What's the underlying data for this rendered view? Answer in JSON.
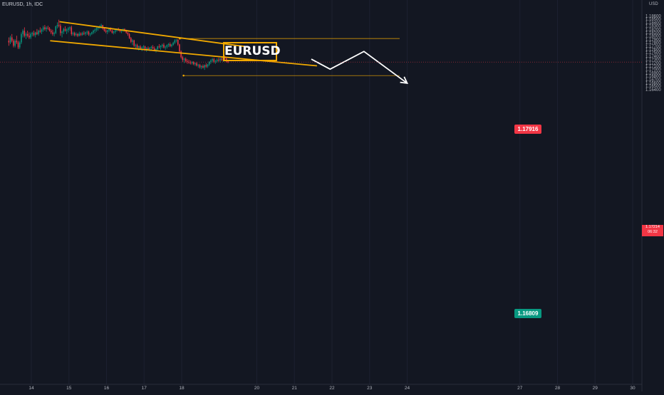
{
  "header": {
    "symbol": "EURUSD, 1h, IDC",
    "currency": "USD"
  },
  "title_label": "EURUSD",
  "colors": {
    "background": "#131722",
    "bull": "#089981",
    "bear": "#f23645",
    "channel": "#f0a800",
    "projection": "#ffffff",
    "text": "#b2b5be"
  },
  "levels": {
    "resistance": "1.17916",
    "target": "1.16809"
  },
  "current_price": {
    "value": "1.17214",
    "countdown": "06:32"
  },
  "chart_data": {
    "type": "candlestick",
    "title": "",
    "ylim": [
      1.163,
      1.1875
    ],
    "y_ticks": [
      "1.18600",
      "1.18500",
      "1.18400",
      "1.18300",
      "1.18200",
      "1.18100",
      "1.18000",
      "1.17900",
      "1.17800",
      "1.17700",
      "1.17600",
      "1.17500",
      "1.17400",
      "1.17300",
      "1.17200",
      "1.17100",
      "1.17000",
      "1.16900",
      "1.16800",
      "1.16700",
      "1.16600",
      "1.16500",
      "1.16400"
    ],
    "x_ticks": [
      "14",
      "15",
      "16",
      "17",
      "18",
      "20",
      "21",
      "22",
      "23",
      "24",
      "27",
      "28",
      "29",
      "30"
    ],
    "x_tick_days": [
      14,
      15,
      16,
      17,
      18,
      20,
      21,
      22,
      23,
      24,
      27,
      28,
      29,
      30
    ],
    "day_bounds": [
      13.4,
      30.0
    ],
    "candle_start_day": 13.4,
    "candles_per_day": 24,
    "candles": [
      [
        1.1785,
        1.1795,
        1.177,
        1.178
      ],
      [
        1.178,
        1.18,
        1.1775,
        1.1795
      ],
      [
        1.1795,
        1.1805,
        1.178,
        1.1785
      ],
      [
        1.1785,
        1.179,
        1.1765,
        1.177
      ],
      [
        1.177,
        1.179,
        1.1765,
        1.1785
      ],
      [
        1.1785,
        1.18,
        1.1775,
        1.178
      ],
      [
        1.178,
        1.1785,
        1.176,
        1.1765
      ],
      [
        1.1765,
        1.1785,
        1.176,
        1.178
      ],
      [
        1.178,
        1.181,
        1.1775,
        1.1805
      ],
      [
        1.1805,
        1.182,
        1.1795,
        1.1815
      ],
      [
        1.1815,
        1.1825,
        1.1795,
        1.18
      ],
      [
        1.18,
        1.181,
        1.179,
        1.1805
      ],
      [
        1.1805,
        1.1815,
        1.1795,
        1.18
      ],
      [
        1.18,
        1.181,
        1.179,
        1.1795
      ],
      [
        1.1795,
        1.181,
        1.179,
        1.1805
      ],
      [
        1.1805,
        1.1812,
        1.1798,
        1.1808
      ],
      [
        1.1808,
        1.1815,
        1.1798,
        1.1802
      ],
      [
        1.1802,
        1.1812,
        1.1795,
        1.181
      ],
      [
        1.181,
        1.182,
        1.1802,
        1.1805
      ],
      [
        1.1805,
        1.1818,
        1.18,
        1.1815
      ],
      [
        1.1815,
        1.1825,
        1.1808,
        1.1812
      ],
      [
        1.1812,
        1.1822,
        1.1805,
        1.1818
      ],
      [
        1.1818,
        1.183,
        1.1812,
        1.1825
      ],
      [
        1.1825,
        1.1832,
        1.1815,
        1.182
      ],
      [
        1.182,
        1.1828,
        1.1812,
        1.1824
      ],
      [
        1.1824,
        1.183,
        1.1818,
        1.1822
      ],
      [
        1.1822,
        1.1826,
        1.1812,
        1.1815
      ],
      [
        1.1815,
        1.182,
        1.1805,
        1.181
      ],
      [
        1.181,
        1.1818,
        1.18,
        1.1805
      ],
      [
        1.1805,
        1.1812,
        1.1798,
        1.1808
      ],
      [
        1.1808,
        1.183,
        1.1805,
        1.1828
      ],
      [
        1.1828,
        1.184,
        1.1822,
        1.1832
      ],
      [
        1.1832,
        1.1848,
        1.1825,
        1.183
      ],
      [
        1.183,
        1.1836,
        1.18,
        1.1808
      ],
      [
        1.1808,
        1.1815,
        1.1795,
        1.1812
      ],
      [
        1.1812,
        1.1824,
        1.1805,
        1.182
      ],
      [
        1.182,
        1.1828,
        1.1812,
        1.1815
      ],
      [
        1.1815,
        1.1822,
        1.1805,
        1.1818
      ],
      [
        1.1818,
        1.1826,
        1.181,
        1.1822
      ],
      [
        1.1822,
        1.1828,
        1.1815,
        1.1825
      ],
      [
        1.1825,
        1.183,
        1.18,
        1.1805
      ],
      [
        1.1805,
        1.1812,
        1.18,
        1.1808
      ],
      [
        1.1808,
        1.1812,
        1.1798,
        1.1802
      ],
      [
        1.1802,
        1.181,
        1.1798,
        1.1805
      ],
      [
        1.1805,
        1.1808,
        1.1796,
        1.18
      ],
      [
        1.18,
        1.1812,
        1.1798,
        1.1806
      ],
      [
        1.1806,
        1.181,
        1.1799,
        1.1803
      ],
      [
        1.1803,
        1.1812,
        1.18,
        1.1808
      ],
      [
        1.1808,
        1.1814,
        1.1802,
        1.1806
      ],
      [
        1.1806,
        1.1812,
        1.18,
        1.181
      ],
      [
        1.181,
        1.1816,
        1.1803,
        1.1812
      ],
      [
        1.1812,
        1.1815,
        1.18,
        1.1804
      ],
      [
        1.1804,
        1.1808,
        1.1798,
        1.1806
      ],
      [
        1.1806,
        1.1812,
        1.1802,
        1.181
      ],
      [
        1.181,
        1.1818,
        1.1805,
        1.1815
      ],
      [
        1.1815,
        1.1822,
        1.1808,
        1.1818
      ],
      [
        1.1818,
        1.1825,
        1.1812,
        1.1822
      ],
      [
        1.1822,
        1.1828,
        1.1815,
        1.1825
      ],
      [
        1.1825,
        1.1832,
        1.182,
        1.1828
      ],
      [
        1.1828,
        1.1836,
        1.1822,
        1.1832
      ],
      [
        1.1832,
        1.1832,
        1.1818,
        1.1822
      ],
      [
        1.1822,
        1.1826,
        1.1812,
        1.1815
      ],
      [
        1.1815,
        1.182,
        1.1808,
        1.1812
      ],
      [
        1.1812,
        1.1818,
        1.1805,
        1.1816
      ],
      [
        1.1816,
        1.1822,
        1.181,
        1.182
      ],
      [
        1.182,
        1.1825,
        1.1812,
        1.1815
      ],
      [
        1.1815,
        1.1818,
        1.1806,
        1.1809
      ],
      [
        1.1809,
        1.1815,
        1.1804,
        1.1812
      ],
      [
        1.1812,
        1.1818,
        1.1806,
        1.1816
      ],
      [
        1.1816,
        1.1822,
        1.1812,
        1.182
      ],
      [
        1.182,
        1.1824,
        1.1814,
        1.1818
      ],
      [
        1.1818,
        1.182,
        1.181,
        1.1814
      ],
      [
        1.1814,
        1.182,
        1.1808,
        1.1817
      ],
      [
        1.1817,
        1.1822,
        1.1812,
        1.182
      ],
      [
        1.182,
        1.1822,
        1.1812,
        1.1815
      ],
      [
        1.1815,
        1.1818,
        1.1806,
        1.1809
      ],
      [
        1.1809,
        1.1812,
        1.18,
        1.1805
      ],
      [
        1.1805,
        1.1808,
        1.179,
        1.1793
      ],
      [
        1.1793,
        1.1796,
        1.1778,
        1.1782
      ],
      [
        1.1782,
        1.179,
        1.1772,
        1.1786
      ],
      [
        1.1786,
        1.1788,
        1.1766,
        1.177
      ],
      [
        1.177,
        1.1776,
        1.1762,
        1.1772
      ],
      [
        1.1772,
        1.1776,
        1.176,
        1.1764
      ],
      [
        1.1764,
        1.177,
        1.1756,
        1.1768
      ],
      [
        1.1768,
        1.1772,
        1.1758,
        1.1762
      ],
      [
        1.1762,
        1.1768,
        1.1754,
        1.1765
      ],
      [
        1.1765,
        1.1772,
        1.176,
        1.1768
      ],
      [
        1.1768,
        1.177,
        1.1755,
        1.1759
      ],
      [
        1.1759,
        1.1766,
        1.1752,
        1.1763
      ],
      [
        1.1763,
        1.1768,
        1.1756,
        1.176
      ],
      [
        1.176,
        1.1766,
        1.1754,
        1.1764
      ],
      [
        1.1764,
        1.177,
        1.1758,
        1.1766
      ],
      [
        1.1766,
        1.1772,
        1.176,
        1.1762
      ],
      [
        1.1762,
        1.1768,
        1.1753,
        1.1756
      ],
      [
        1.1756,
        1.1762,
        1.175,
        1.176
      ],
      [
        1.176,
        1.177,
        1.1756,
        1.1768
      ],
      [
        1.1768,
        1.1775,
        1.1762,
        1.1766
      ],
      [
        1.1766,
        1.1772,
        1.1758,
        1.177
      ],
      [
        1.177,
        1.1776,
        1.1764,
        1.1773
      ],
      [
        1.1773,
        1.1778,
        1.1762,
        1.1765
      ],
      [
        1.1765,
        1.177,
        1.1758,
        1.1767
      ],
      [
        1.1767,
        1.1774,
        1.1762,
        1.1772
      ],
      [
        1.1772,
        1.1778,
        1.1766,
        1.1775
      ],
      [
        1.1775,
        1.178,
        1.1766,
        1.1769
      ],
      [
        1.1769,
        1.1776,
        1.1765,
        1.1773
      ],
      [
        1.1773,
        1.1782,
        1.177,
        1.1779
      ],
      [
        1.1779,
        1.179,
        1.1775,
        1.1786
      ],
      [
        1.1786,
        1.179,
        1.178,
        1.1788
      ],
      [
        1.1788,
        1.179,
        1.177,
        1.1774
      ],
      [
        1.1774,
        1.1776,
        1.175,
        1.1753
      ],
      [
        1.1753,
        1.1756,
        1.1732,
        1.1736
      ],
      [
        1.1736,
        1.174,
        1.1722,
        1.1728
      ],
      [
        1.1728,
        1.1734,
        1.1718,
        1.1731
      ],
      [
        1.1731,
        1.1735,
        1.172,
        1.1724
      ],
      [
        1.1724,
        1.173,
        1.1716,
        1.1722
      ],
      [
        1.1722,
        1.1728,
        1.1716,
        1.172
      ],
      [
        1.172,
        1.1726,
        1.1714,
        1.1718
      ],
      [
        1.1718,
        1.1724,
        1.1714,
        1.1721
      ],
      [
        1.1721,
        1.1724,
        1.1712,
        1.1715
      ],
      [
        1.1715,
        1.172,
        1.171,
        1.1718
      ],
      [
        1.1718,
        1.1722,
        1.1708,
        1.1711
      ],
      [
        1.1711,
        1.1716,
        1.1704,
        1.1713
      ],
      [
        1.1713,
        1.1716,
        1.1702,
        1.1706
      ],
      [
        1.1706,
        1.1712,
        1.17,
        1.1709
      ],
      [
        1.1709,
        1.1714,
        1.1702,
        1.1705
      ],
      [
        1.1705,
        1.1714,
        1.1698,
        1.1712
      ],
      [
        1.1712,
        1.1718,
        1.1704,
        1.1708
      ],
      [
        1.1708,
        1.1716,
        1.1704,
        1.1714
      ],
      [
        1.1714,
        1.1724,
        1.171,
        1.1722
      ],
      [
        1.1722,
        1.173,
        1.1716,
        1.1726
      ],
      [
        1.1726,
        1.1734,
        1.172,
        1.173
      ],
      [
        1.173,
        1.1734,
        1.1718,
        1.1722
      ],
      [
        1.1722,
        1.1728,
        1.1716,
        1.1724
      ],
      [
        1.1724,
        1.1732,
        1.172,
        1.1728
      ],
      [
        1.1728,
        1.1734,
        1.1722,
        1.1726
      ],
      [
        1.1726,
        1.1734,
        1.172,
        1.1732
      ],
      [
        1.1732,
        1.1736,
        1.1724,
        1.1727
      ],
      [
        1.1727,
        1.174,
        1.1722,
        1.1736
      ],
      [
        1.1736,
        1.174,
        1.1728,
        1.1732
      ],
      [
        1.1732,
        1.1736,
        1.172,
        1.1723
      ],
      [
        1.1723,
        1.1728,
        1.1718,
        1.1721
      ]
    ],
    "channel_upper": [
      [
        14.75,
        1.1842
      ],
      [
        19.8,
        1.1766
      ]
    ],
    "channel_lower": [
      [
        14.5,
        1.1785
      ],
      [
        21.6,
        1.171
      ]
    ],
    "resistance_line": {
      "from_day": 17.95,
      "to_day": 23.8,
      "value": 1.17916
    },
    "target_line": {
      "from_day": 18.05,
      "to_day": 23.8,
      "value": 1.16809
    },
    "projection_path": [
      [
        21.45,
        1.173
      ],
      [
        21.95,
        1.17
      ],
      [
        22.85,
        1.1753
      ],
      [
        24.0,
        1.1658
      ]
    ]
  }
}
